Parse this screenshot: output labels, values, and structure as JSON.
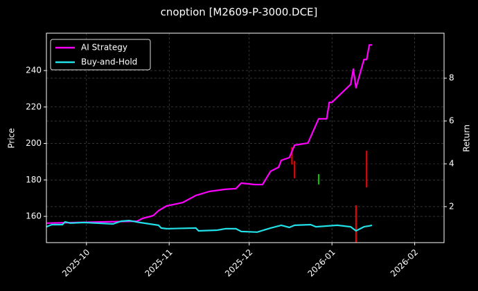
{
  "chart_data": {
    "type": "line",
    "title": "cnoption [M2609-P-3000.DCE]",
    "y_label": "Price",
    "y2_label": "Return",
    "xlim": [
      "2025-09-16",
      "2026-02-12"
    ],
    "xticks": [
      "2025-10",
      "2025-11",
      "2025-12",
      "2026-01",
      "2026-02"
    ],
    "ylim": [
      145.6,
      260.5
    ],
    "yticks": [
      160,
      180,
      200,
      220,
      240
    ],
    "y2lim": [
      0.32,
      10.1
    ],
    "y2ticks": [
      2,
      4,
      6,
      8
    ],
    "grid": true,
    "legend": "upper left",
    "series": [
      {
        "name": "AI Strategy",
        "color": "#ff00ff",
        "axis": "y2",
        "x": [
          "2025-09-16",
          "2025-10-20",
          "2025-10-22",
          "2025-10-26",
          "2025-10-28",
          "2025-10-31",
          "2025-11-06",
          "2025-11-11",
          "2025-11-16",
          "2025-11-22",
          "2025-11-26",
          "2025-11-28",
          "2025-12-03",
          "2025-12-06",
          "2025-12-09",
          "2025-12-12",
          "2025-12-13",
          "2025-12-16",
          "2025-12-18",
          "2025-12-23",
          "2025-12-27",
          "2025-12-30",
          "2025-12-31",
          "2026-01-01",
          "2026-01-08",
          "2026-01-09",
          "2026-01-10",
          "2026-01-13",
          "2026-01-14",
          "2026-01-15",
          "2026-01-16"
        ],
        "values": [
          1.23,
          1.32,
          1.45,
          1.58,
          1.81,
          2.03,
          2.19,
          2.52,
          2.71,
          2.81,
          2.84,
          3.1,
          3.03,
          3.03,
          3.65,
          3.84,
          4.16,
          4.29,
          4.87,
          4.97,
          6.1,
          6.1,
          6.87,
          6.87,
          7.71,
          8.42,
          7.55,
          8.87,
          8.87,
          9.55,
          9.55
        ]
      },
      {
        "name": "Buy-and-Hold",
        "color": "#22e0e8",
        "axis": "y2",
        "x": [
          "2025-09-16",
          "2025-09-18",
          "2025-09-22",
          "2025-09-23",
          "2025-09-25",
          "2025-09-30",
          "2025-10-11",
          "2025-10-14",
          "2025-10-17",
          "2025-10-21",
          "2025-10-28",
          "2025-10-29",
          "2025-10-31",
          "2025-11-11",
          "2025-11-12",
          "2025-11-19",
          "2025-11-22",
          "2025-11-26",
          "2025-11-28",
          "2025-12-04",
          "2025-12-09",
          "2025-12-13",
          "2025-12-16",
          "2025-12-18",
          "2025-12-24",
          "2025-12-26",
          "2026-01-03",
          "2026-01-08",
          "2026-01-10",
          "2026-01-13",
          "2026-01-15",
          "2026-01-16"
        ],
        "values": [
          1.06,
          1.16,
          1.16,
          1.29,
          1.23,
          1.26,
          1.19,
          1.32,
          1.35,
          1.26,
          1.13,
          1.0,
          0.97,
          1.0,
          0.87,
          0.9,
          0.97,
          0.97,
          0.84,
          0.81,
          1.0,
          1.13,
          1.03,
          1.13,
          1.16,
          1.06,
          1.13,
          1.06,
          0.87,
          1.06,
          1.1,
          1.13
        ]
      }
    ],
    "bars": {
      "x": [
        "2025-12-17",
        "2025-12-18",
        "2025-12-27",
        "2026-01-10",
        "2026-01-14"
      ],
      "low": [
        188.5,
        180.9,
        177.5,
        145.6,
        175.9
      ],
      "high": [
        198,
        190.4,
        183.2,
        166.1,
        196
      ],
      "colors": [
        "#ff0000",
        "#ff0000",
        "#00cc00",
        "#ff0000",
        "#ff0000"
      ]
    }
  }
}
